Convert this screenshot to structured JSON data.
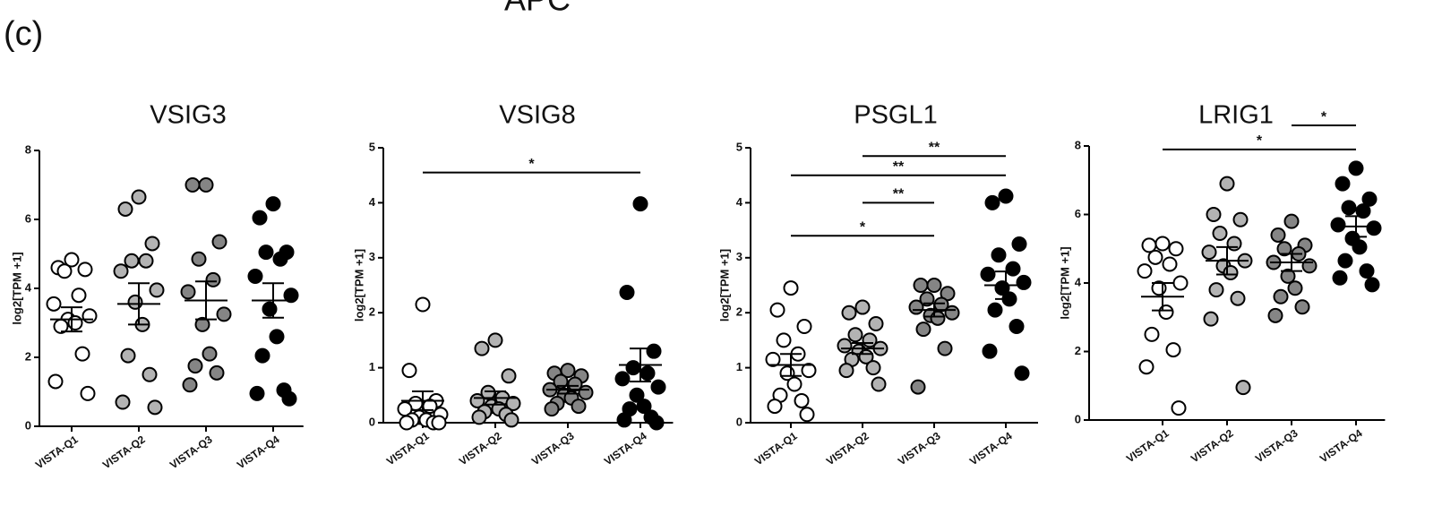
{
  "figure_label": "(c)",
  "heading": "APC",
  "chart_data": [
    {
      "type": "dotplot",
      "title": "VSIG3",
      "ylabel": "log2[TPM +1]",
      "categories": [
        "VISTA-Q1",
        "VISTA-Q2",
        "VISTA-Q3",
        "VISTA-Q4"
      ],
      "colors": [
        "#ffffff",
        "#b3b3b3",
        "#858585",
        "#000000"
      ],
      "edgecolor": "#000000",
      "values": [
        [
          4.83,
          4.6,
          4.55,
          4.5,
          3.8,
          3.55,
          3.2,
          3.1,
          3.0,
          2.9,
          2.1,
          1.3,
          0.95
        ],
        [
          6.65,
          6.3,
          5.3,
          4.8,
          4.8,
          4.5,
          3.95,
          3.6,
          2.95,
          2.05,
          1.5,
          0.7,
          0.55
        ],
        [
          7.0,
          7.0,
          5.35,
          4.85,
          4.25,
          3.9,
          3.25,
          2.95,
          2.1,
          1.75,
          1.55,
          1.2
        ],
        [
          6.45,
          6.05,
          5.05,
          5.05,
          4.85,
          4.35,
          3.8,
          3.4,
          2.6,
          2.05,
          1.05,
          0.95,
          0.8
        ]
      ],
      "means": [
        3.1,
        3.55,
        3.65,
        3.65
      ],
      "sems": [
        0.35,
        0.6,
        0.55,
        0.5
      ],
      "ylim": [
        0,
        8
      ],
      "yticks": [
        0,
        2,
        4,
        6,
        8
      ],
      "brackets": []
    },
    {
      "type": "dotplot",
      "title": "VSIG8",
      "ylabel": "log2[TPM +1]",
      "categories": [
        "VISTA-Q1",
        "VISTA-Q2",
        "VISTA-Q3",
        "VISTA-Q4"
      ],
      "colors": [
        "#ffffff",
        "#b3b3b3",
        "#858585",
        "#000000"
      ],
      "edgecolor": "#000000",
      "values": [
        [
          2.15,
          0.95,
          0.4,
          0.35,
          0.3,
          0.25,
          0.15,
          0.1,
          0.05,
          0.05,
          0.0,
          0.0,
          0.0
        ],
        [
          1.5,
          1.35,
          0.85,
          0.55,
          0.45,
          0.4,
          0.35,
          0.3,
          0.25,
          0.2,
          0.15,
          0.1,
          0.05
        ],
        [
          0.95,
          0.9,
          0.85,
          0.75,
          0.7,
          0.6,
          0.55,
          0.5,
          0.45,
          0.35,
          0.3,
          0.25
        ],
        [
          3.98,
          2.37,
          1.3,
          1.0,
          0.9,
          0.8,
          0.65,
          0.5,
          0.3,
          0.25,
          0.1,
          0.05,
          0.0
        ]
      ],
      "means": [
        0.4,
        0.45,
        0.6,
        1.05
      ],
      "sems": [
        0.17,
        0.12,
        0.07,
        0.3
      ],
      "ylim": [
        0,
        5
      ],
      "yticks": [
        0,
        1,
        2,
        3,
        4,
        5
      ],
      "brackets": [
        {
          "from": 0,
          "to": 3,
          "y": 4.55,
          "label": "*"
        }
      ]
    },
    {
      "type": "dotplot",
      "title": "PSGL1",
      "ylabel": "log2[TPM +1]",
      "categories": [
        "VISTA-Q1",
        "VISTA-Q2",
        "VISTA-Q3",
        "VISTA-Q4"
      ],
      "colors": [
        "#ffffff",
        "#b3b3b3",
        "#858585",
        "#000000"
      ],
      "edgecolor": "#000000",
      "values": [
        [
          2.45,
          2.05,
          1.75,
          1.5,
          1.25,
          1.15,
          0.95,
          0.9,
          0.7,
          0.5,
          0.4,
          0.3,
          0.15
        ],
        [
          2.1,
          2.0,
          1.8,
          1.6,
          1.5,
          1.4,
          1.35,
          1.3,
          1.2,
          1.15,
          1.0,
          0.95,
          0.7
        ],
        [
          2.5,
          2.5,
          2.35,
          2.25,
          2.15,
          2.1,
          2.0,
          1.95,
          1.9,
          1.7,
          1.35,
          0.65
        ],
        [
          4.12,
          4.0,
          3.25,
          3.05,
          2.8,
          2.7,
          2.55,
          2.45,
          2.25,
          2.05,
          1.75,
          1.3,
          0.9
        ]
      ],
      "means": [
        1.05,
        1.35,
        2.05,
        2.5
      ],
      "sems": [
        0.2,
        0.1,
        0.12,
        0.25
      ],
      "ylim": [
        0,
        5
      ],
      "yticks": [
        0,
        1,
        2,
        3,
        4,
        5
      ],
      "brackets": [
        {
          "from": 0,
          "to": 2,
          "y": 3.4,
          "label": "*"
        },
        {
          "from": 1,
          "to": 2,
          "y": 4.0,
          "label": "**"
        },
        {
          "from": 0,
          "to": 3,
          "y": 4.5,
          "label": "**"
        },
        {
          "from": 1,
          "to": 3,
          "y": 4.85,
          "label": "**"
        }
      ]
    },
    {
      "type": "dotplot",
      "title": "LRIG1",
      "ylabel": "log2[TPM +1]",
      "categories": [
        "VISTA-Q1",
        "VISTA-Q2",
        "VISTA-Q3",
        "VISTA-Q4"
      ],
      "colors": [
        "#ffffff",
        "#b3b3b3",
        "#858585",
        "#000000"
      ],
      "edgecolor": "#000000",
      "values": [
        [
          5.15,
          5.1,
          5.0,
          4.75,
          4.55,
          4.35,
          4.0,
          3.85,
          3.15,
          2.5,
          2.05,
          1.55,
          0.35
        ],
        [
          6.9,
          6.0,
          5.85,
          5.45,
          5.15,
          4.9,
          4.65,
          4.5,
          4.3,
          3.8,
          3.55,
          2.95,
          0.95
        ],
        [
          5.8,
          5.4,
          5.1,
          5.0,
          4.85,
          4.6,
          4.5,
          4.2,
          3.85,
          3.6,
          3.3,
          3.05
        ],
        [
          7.35,
          6.9,
          6.45,
          6.2,
          6.1,
          5.7,
          5.6,
          5.3,
          5.05,
          4.65,
          4.35,
          4.15,
          3.95
        ]
      ],
      "means": [
        3.6,
        4.65,
        4.6,
        5.65
      ],
      "sems": [
        0.4,
        0.4,
        0.25,
        0.3
      ],
      "ylim": [
        0,
        8
      ],
      "yticks": [
        0,
        2,
        4,
        6,
        8
      ],
      "brackets": [
        {
          "from": 0,
          "to": 3,
          "y": 7.9,
          "label": "*"
        },
        {
          "from": 2,
          "to": 3,
          "y": 8.6,
          "label": "*"
        }
      ]
    }
  ]
}
